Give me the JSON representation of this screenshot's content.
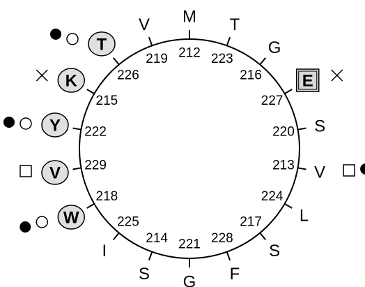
{
  "wheel": {
    "start_angle": 0,
    "step_angle": 100,
    "residues": [
      {
        "number": 212,
        "letter": "M",
        "style": "plain",
        "markers": []
      },
      {
        "number": 213,
        "letter": "V",
        "style": "plain",
        "markers": [
          "open-square",
          "filled-circle"
        ]
      },
      {
        "number": 214,
        "letter": "S",
        "style": "plain",
        "markers": []
      },
      {
        "number": 215,
        "letter": "K",
        "style": "circle",
        "markers": [
          "cross"
        ]
      },
      {
        "number": 216,
        "letter": "G",
        "style": "plain",
        "markers": []
      },
      {
        "number": 217,
        "letter": "S",
        "style": "plain",
        "markers": []
      },
      {
        "number": 218,
        "letter": "W",
        "style": "circle",
        "markers": [
          "open-circle",
          "filled-circle"
        ]
      },
      {
        "number": 219,
        "letter": "V",
        "style": "plain",
        "markers": []
      },
      {
        "number": 220,
        "letter": "S",
        "style": "plain",
        "markers": []
      },
      {
        "number": 221,
        "letter": "G",
        "style": "plain",
        "markers": []
      },
      {
        "number": 222,
        "letter": "Y",
        "style": "circle",
        "markers": [
          "open-circle",
          "filled-circle"
        ]
      },
      {
        "number": 223,
        "letter": "T",
        "style": "plain",
        "markers": []
      },
      {
        "number": 224,
        "letter": "L",
        "style": "plain",
        "markers": []
      },
      {
        "number": 225,
        "letter": "I",
        "style": "plain",
        "markers": []
      },
      {
        "number": 226,
        "letter": "T",
        "style": "circle",
        "markers": [
          "open-circle",
          "filled-circle"
        ]
      },
      {
        "number": 227,
        "letter": "E",
        "style": "box",
        "markers": [
          "cross"
        ]
      },
      {
        "number": 228,
        "letter": "F",
        "style": "plain",
        "markers": []
      },
      {
        "number": 229,
        "letter": "V",
        "style": "circle",
        "markers": [
          "open-square"
        ]
      }
    ]
  }
}
